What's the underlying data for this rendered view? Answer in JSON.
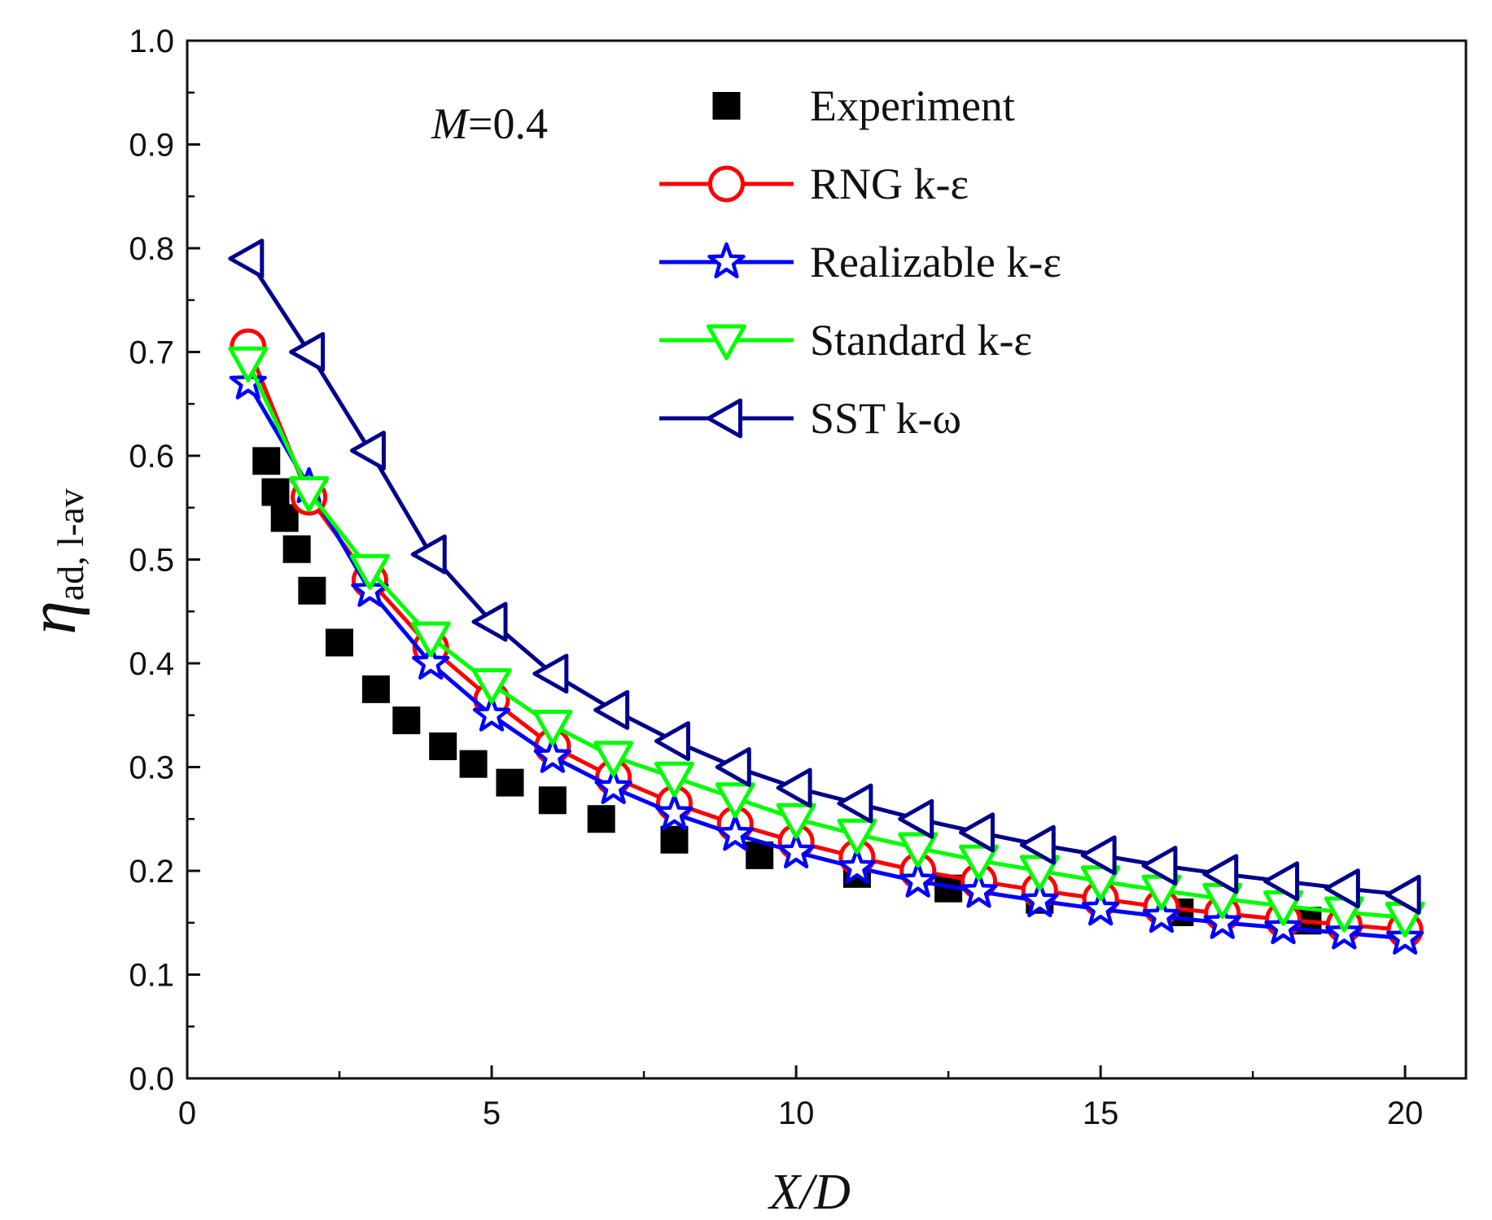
{
  "chart_data": {
    "type": "line",
    "title": "",
    "annotation": {
      "var": "M",
      "value": "=0.4"
    },
    "xlabel": {
      "var": "X/D"
    },
    "ylabel": {
      "symbol": "η",
      "sub": "ad, l-av"
    },
    "xlim": [
      0,
      21
    ],
    "ylim": [
      0.0,
      1.0
    ],
    "xticks": [
      0,
      5,
      10,
      15,
      20
    ],
    "xtick_labels": [
      "0",
      "5",
      "10",
      "15",
      "20"
    ],
    "yticks": [
      0.0,
      0.1,
      0.2,
      0.3,
      0.4,
      0.5,
      0.6,
      0.7,
      0.8,
      0.9,
      1.0
    ],
    "ytick_labels": [
      "0.0",
      "0.1",
      "0.2",
      "0.3",
      "0.4",
      "0.5",
      "0.6",
      "0.7",
      "0.8",
      "0.9",
      "1.0"
    ],
    "grid": false,
    "legend_position": "top-right",
    "series": [
      {
        "name": "Experiment",
        "marker": "square-filled",
        "line": false,
        "color": "#000000",
        "x": [
          1.3,
          1.45,
          1.6,
          1.8,
          2.05,
          2.5,
          3.1,
          3.6,
          4.2,
          4.7,
          5.3,
          6.0,
          6.8,
          8.0,
          9.4,
          11.0,
          12.5,
          14.0,
          16.3,
          18.4
        ],
        "y": [
          0.595,
          0.565,
          0.54,
          0.51,
          0.47,
          0.42,
          0.375,
          0.345,
          0.32,
          0.303,
          0.285,
          0.268,
          0.25,
          0.23,
          0.215,
          0.197,
          0.183,
          0.172,
          0.16,
          0.152
        ]
      },
      {
        "name": "RNG k-ε",
        "marker": "circle-open",
        "line": true,
        "color": "#ff0000",
        "x": [
          1,
          2,
          3,
          4,
          5,
          6,
          7,
          8,
          9,
          10,
          11,
          12,
          13,
          14,
          15,
          16,
          17,
          18,
          19,
          20
        ],
        "y": [
          0.705,
          0.56,
          0.48,
          0.415,
          0.365,
          0.32,
          0.29,
          0.265,
          0.245,
          0.228,
          0.213,
          0.2,
          0.19,
          0.181,
          0.173,
          0.165,
          0.159,
          0.153,
          0.148,
          0.143
        ]
      },
      {
        "name": "Realizable k-ε",
        "marker": "star-open",
        "line": true,
        "color": "#0000ff",
        "x": [
          1,
          2,
          3,
          4,
          5,
          6,
          7,
          8,
          9,
          10,
          11,
          12,
          13,
          14,
          15,
          16,
          17,
          18,
          19,
          20
        ],
        "y": [
          0.67,
          0.57,
          0.47,
          0.4,
          0.35,
          0.31,
          0.28,
          0.255,
          0.235,
          0.218,
          0.203,
          0.19,
          0.18,
          0.171,
          0.163,
          0.156,
          0.15,
          0.145,
          0.14,
          0.135
        ]
      },
      {
        "name": "Standard k-ε",
        "marker": "triangle-down-open",
        "line": true,
        "color": "#00ff00",
        "x": [
          1,
          2,
          3,
          4,
          5,
          6,
          7,
          8,
          9,
          10,
          11,
          12,
          13,
          14,
          15,
          16,
          17,
          18,
          19,
          20
        ],
        "y": [
          0.69,
          0.565,
          0.49,
          0.425,
          0.38,
          0.34,
          0.31,
          0.29,
          0.27,
          0.25,
          0.235,
          0.222,
          0.21,
          0.2,
          0.19,
          0.181,
          0.173,
          0.166,
          0.16,
          0.155
        ]
      },
      {
        "name": "SST k-ω",
        "marker": "triangle-left-open",
        "line": true,
        "color": "#00008b",
        "x": [
          1,
          2,
          3,
          4,
          5,
          6,
          7,
          8,
          9,
          10,
          11,
          12,
          13,
          14,
          15,
          16,
          17,
          18,
          19,
          20
        ],
        "y": [
          0.79,
          0.7,
          0.605,
          0.505,
          0.44,
          0.39,
          0.355,
          0.325,
          0.3,
          0.28,
          0.265,
          0.25,
          0.237,
          0.225,
          0.215,
          0.205,
          0.197,
          0.19,
          0.183,
          0.177
        ]
      }
    ]
  }
}
